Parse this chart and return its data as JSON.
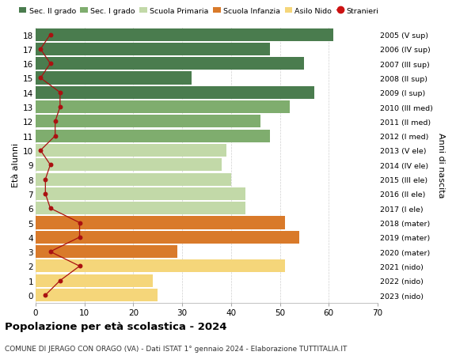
{
  "ages": [
    18,
    17,
    16,
    15,
    14,
    13,
    12,
    11,
    10,
    9,
    8,
    7,
    6,
    5,
    4,
    3,
    2,
    1,
    0
  ],
  "bar_values": [
    61,
    48,
    55,
    32,
    57,
    52,
    46,
    48,
    39,
    38,
    40,
    43,
    43,
    51,
    54,
    29,
    51,
    24,
    25
  ],
  "stranieri": [
    3,
    1,
    3,
    1,
    5,
    5,
    4,
    4,
    1,
    3,
    2,
    2,
    3,
    9,
    9,
    3,
    9,
    5,
    2
  ],
  "right_labels": [
    "2005 (V sup)",
    "2006 (IV sup)",
    "2007 (III sup)",
    "2008 (II sup)",
    "2009 (I sup)",
    "2010 (III med)",
    "2011 (II med)",
    "2012 (I med)",
    "2013 (V ele)",
    "2014 (IV ele)",
    "2015 (III ele)",
    "2016 (II ele)",
    "2017 (I ele)",
    "2018 (mater)",
    "2019 (mater)",
    "2020 (mater)",
    "2021 (nido)",
    "2022 (nido)",
    "2023 (nido)"
  ],
  "bar_colors": [
    "#4a7c4e",
    "#4a7c4e",
    "#4a7c4e",
    "#4a7c4e",
    "#4a7c4e",
    "#7fad6e",
    "#7fad6e",
    "#7fad6e",
    "#c2d9a8",
    "#c2d9a8",
    "#c2d9a8",
    "#c2d9a8",
    "#c2d9a8",
    "#d97a2a",
    "#d97a2a",
    "#d97a2a",
    "#f5d67a",
    "#f5d67a",
    "#f5d67a"
  ],
  "legend_labels": [
    "Sec. II grado",
    "Sec. I grado",
    "Scuola Primaria",
    "Scuola Infanzia",
    "Asilo Nido",
    "Stranieri"
  ],
  "legend_colors": [
    "#4a7c4e",
    "#7fad6e",
    "#c2d9a8",
    "#d97a2a",
    "#f5d67a",
    "#cc1111"
  ],
  "ylabel": "Età alunni",
  "right_ylabel": "Anni di nascita",
  "title": "Popolazione per età scolastica - 2024",
  "subtitle": "COMUNE DI JERAGO CON ORAGO (VA) - Dati ISTAT 1° gennaio 2024 - Elaborazione TUTTITALIA.IT",
  "xlim": [
    0,
    70
  ],
  "stranieri_color": "#aa1111",
  "bar_height": 0.88,
  "figsize": [
    6.0,
    4.6
  ],
  "dpi": 100
}
